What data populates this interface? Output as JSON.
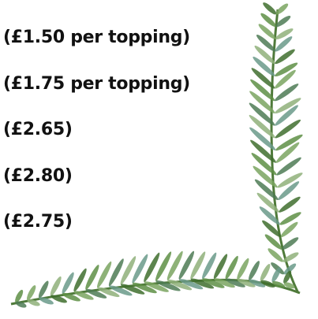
{
  "price_list": {
    "lines": [
      "(£1.50 per topping)",
      "(£1.75 per topping)",
      "(£2.65)",
      "(£2.80)",
      "(£2.75)"
    ]
  }
}
